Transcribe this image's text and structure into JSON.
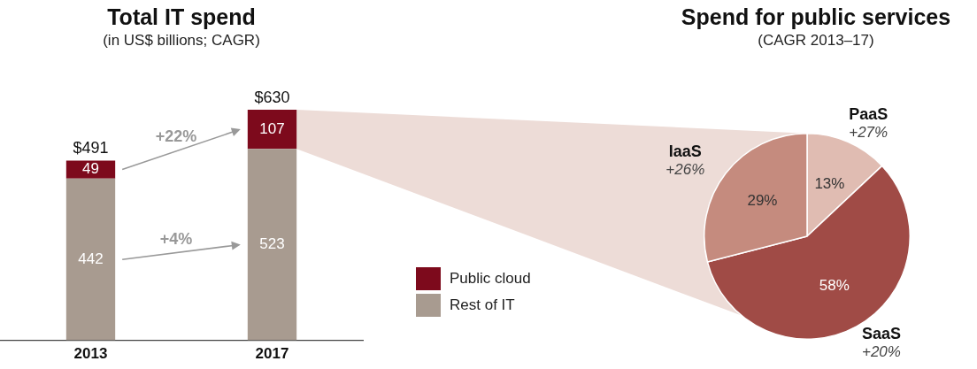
{
  "chart_data": [
    {
      "type": "bar",
      "title": "Total IT spend",
      "subtitle": "(in US$ billions; CAGR)",
      "categories": [
        "2013",
        "2017"
      ],
      "stacked": true,
      "data_labels": true,
      "legend": "right",
      "series": [
        {
          "name": "Rest of IT",
          "color": "#a89b90",
          "values": [
            442,
            523
          ]
        },
        {
          "name": "Public cloud",
          "color": "#7d0a1c",
          "values": [
            49,
            107
          ]
        }
      ],
      "totals": [
        "$491",
        "$630"
      ],
      "annotations": [
        "+22%",
        "+4%"
      ]
    },
    {
      "type": "pie",
      "title": "Spend for public services",
      "subtitle": "(CAGR 2013–17)",
      "categories": [
        "PaaS",
        "SaaS",
        "IaaS"
      ],
      "values": [
        13,
        58,
        29
      ],
      "colors": [
        "#e0bcb2",
        "#a04b46",
        "#c58b7e"
      ],
      "value_labels": [
        "13%",
        "58%",
        "29%"
      ],
      "annotations": [
        "+27%",
        "+20%",
        "+26%"
      ]
    }
  ]
}
